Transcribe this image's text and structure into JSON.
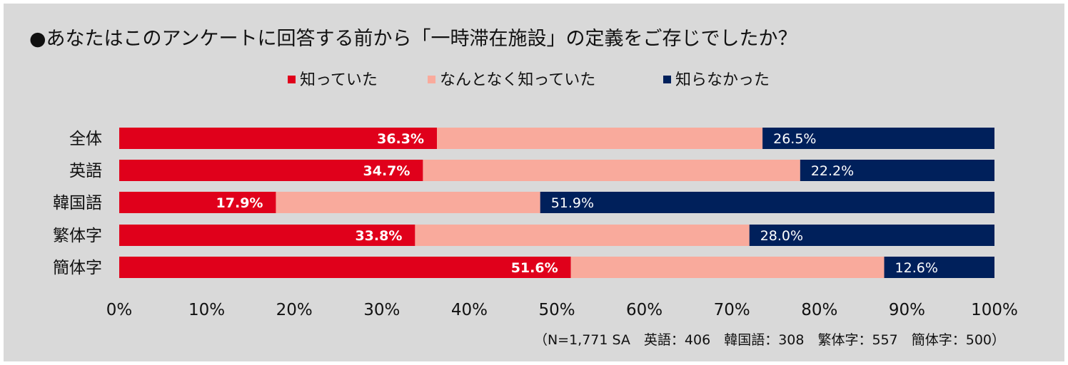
{
  "chart_data": {
    "type": "bar",
    "orientation": "horizontal",
    "stacked": true,
    "title": "●あなたはこのアンケートに回答する前から「一時滞在施設」の定義をご存じでしたか？",
    "categories": [
      "全体",
      "英語",
      "韓国語",
      "繁体字",
      "簡体字"
    ],
    "series": [
      {
        "name": "知っていた",
        "color": "#e0001b",
        "values": [
          36.3,
          34.7,
          17.9,
          33.8,
          51.6
        ],
        "labels": [
          "36.3%",
          "34.7%",
          "17.9%",
          "33.8%",
          "51.6%"
        ]
      },
      {
        "name": "なんとなく知っていた",
        "color": "#f9aa9c",
        "values": [
          37.2,
          43.1,
          30.2,
          38.2,
          35.8
        ],
        "labels": [
          "",
          "",
          "",
          "",
          ""
        ]
      },
      {
        "name": "知らなかった",
        "color": "#00205b",
        "values": [
          26.5,
          22.2,
          51.9,
          28.0,
          12.6
        ],
        "labels": [
          "26.5%",
          "22.2%",
          "51.9%",
          "28.0%",
          "12.6%"
        ]
      }
    ],
    "xlim": [
      0,
      100
    ],
    "xticks": [
      "0%",
      "10%",
      "20%",
      "30%",
      "40%",
      "50%",
      "60%",
      "70%",
      "80%",
      "90%",
      "100%"
    ],
    "legend_position": "top-center",
    "grid": false,
    "note": "（N=1,771 SA　英語：406　韓国語：308　繁体字：557　簡体字：500）"
  }
}
